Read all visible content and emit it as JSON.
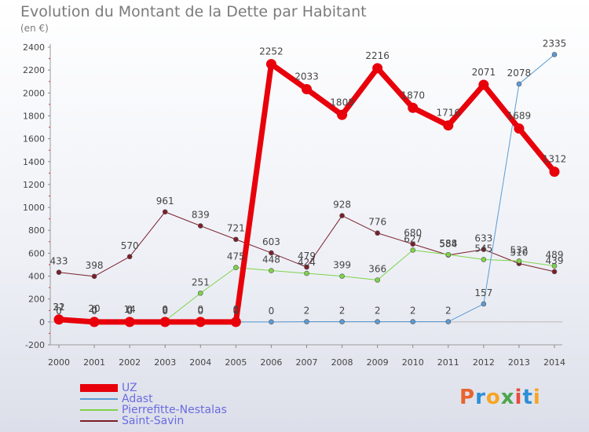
{
  "chart_data": {
    "type": "line",
    "title": "Evolution du Montant de la Dette par Habitant",
    "subtitle": "(en €)",
    "x": [
      "2000",
      "2001",
      "2002",
      "2003",
      "2004",
      "2005",
      "2006",
      "2007",
      "2008",
      "2009",
      "2010",
      "2011",
      "2012",
      "2013",
      "2014"
    ],
    "ylim": [
      -200,
      2400
    ],
    "yticks": [
      -200,
      0,
      200,
      400,
      600,
      800,
      1000,
      1200,
      1400,
      1600,
      1800,
      2000,
      2200,
      2400
    ],
    "grid": false,
    "legend_position": "bottom-left",
    "series": [
      {
        "name": "UZ",
        "color": "#e8000b",
        "width": 7,
        "values": [
          21,
          0,
          0,
          0,
          0,
          0,
          2252,
          2033,
          1808,
          2216,
          1870,
          1716,
          2071,
          1689,
          1312
        ]
      },
      {
        "name": "Adast",
        "color": "#5b9bd5",
        "width": 1,
        "values": [
          0,
          0,
          0,
          0,
          0,
          0,
          0,
          2,
          2,
          2,
          2,
          2,
          157,
          2078,
          2335
        ]
      },
      {
        "name": "Pierrefitte-Nestalas",
        "color": "#7ed348",
        "width": 1,
        "values": [
          32,
          20,
          14,
          9,
          251,
          475,
          448,
          424,
          399,
          366,
          627,
          588,
          545,
          532,
          489
        ]
      },
      {
        "name": "Saint-Savin",
        "color": "#7b1f2a",
        "width": 1,
        "values": [
          433,
          398,
          570,
          961,
          839,
          721,
          603,
          479,
          928,
          776,
          680,
          584,
          633,
          510,
          439
        ]
      }
    ]
  },
  "branding": {
    "logo_text": "Proxiti",
    "logo_colors": [
      "#e8642c",
      "#2b8fd6",
      "#f5a623",
      "#4ca64c",
      "#e84c3d",
      "#2b8fd6",
      "#f5a623"
    ]
  }
}
